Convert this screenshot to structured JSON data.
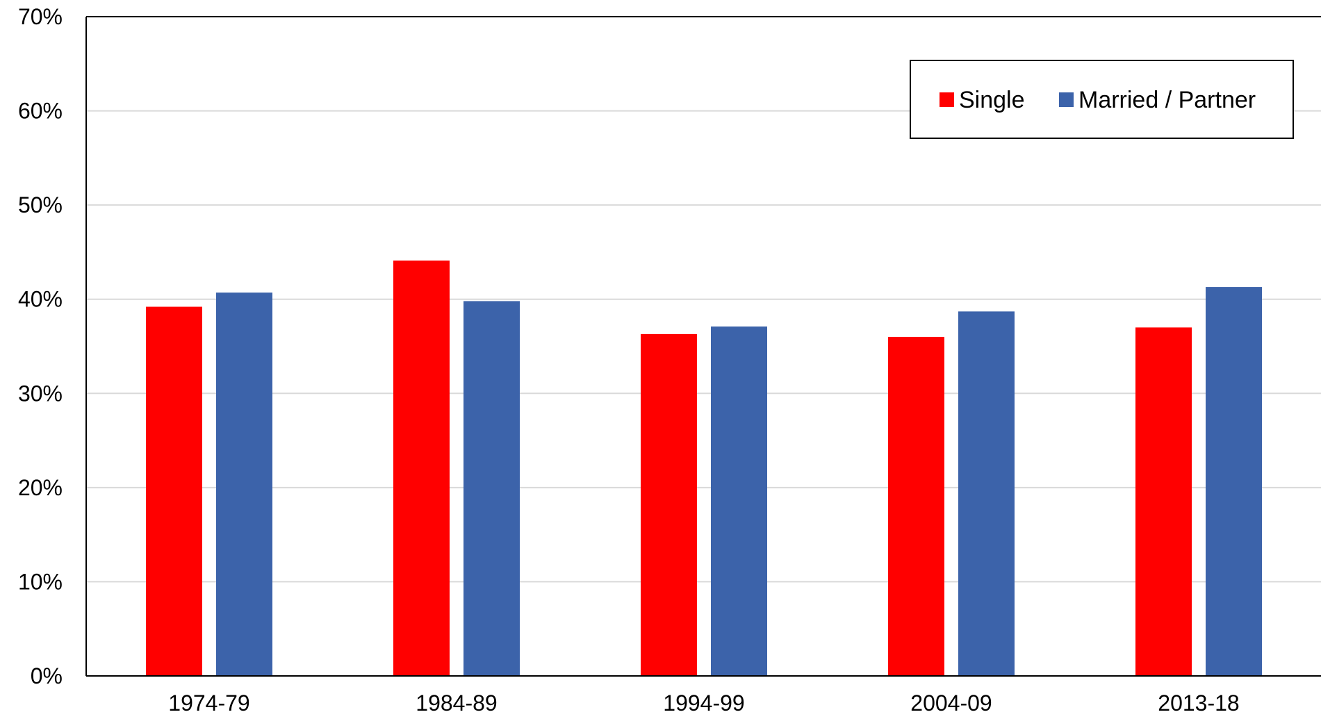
{
  "chart_data": {
    "type": "bar",
    "title": "",
    "xlabel": "",
    "ylabel": "",
    "categories": [
      "1974-79",
      "1984-89",
      "1994-99",
      "2004-09",
      "2013-18"
    ],
    "series": [
      {
        "name": "Single",
        "color": "#ff0000",
        "values": [
          39.2,
          44.1,
          36.3,
          36.0,
          37.0
        ]
      },
      {
        "name": "Married / Partner",
        "color": "#3c63aa",
        "values": [
          40.7,
          39.8,
          37.1,
          38.7,
          41.3
        ]
      }
    ],
    "ylim": [
      0,
      70
    ],
    "yticks": [
      0,
      10,
      20,
      30,
      40,
      50,
      60,
      70
    ],
    "ytick_labels": [
      "0%",
      "10%",
      "20%",
      "30%",
      "40%",
      "50%",
      "60%",
      "70%"
    ],
    "grid": true,
    "legend_position": "top-right"
  }
}
